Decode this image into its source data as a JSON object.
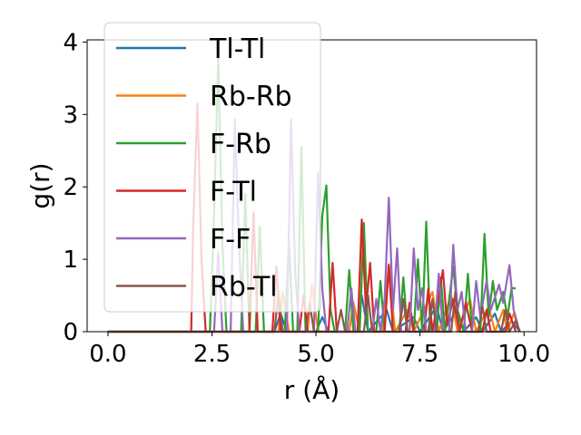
{
  "chart_data": {
    "type": "line",
    "xlabel": "r (Å)",
    "ylabel": "g(r)",
    "xlim": [
      -0.5,
      10.3
    ],
    "ylim": [
      0,
      4.03
    ],
    "xticks": [
      0.0,
      2.5,
      5.0,
      7.5,
      10.0
    ],
    "xtick_labels": [
      "0.0",
      "2.5",
      "5.0",
      "7.5",
      "10.0"
    ],
    "yticks": [
      0,
      1,
      2,
      3,
      4
    ],
    "ytick_labels": [
      "0",
      "1",
      "2",
      "3",
      "4"
    ],
    "grid": false,
    "legend_position": "upper-left",
    "series": [
      {
        "name": "Tl-Tl",
        "color": "#1f77b4",
        "points": [
          [
            0,
            0
          ],
          [
            4.0,
            0
          ],
          [
            4.15,
            0.25
          ],
          [
            4.3,
            0
          ],
          [
            5.0,
            0
          ],
          [
            5.15,
            0.2
          ],
          [
            5.3,
            0
          ],
          [
            6.0,
            0
          ],
          [
            6.1,
            0.5
          ],
          [
            6.25,
            0
          ],
          [
            6.7,
            0.3
          ],
          [
            6.85,
            0
          ],
          [
            7.35,
            0.2
          ],
          [
            7.5,
            0
          ],
          [
            7.9,
            0.35
          ],
          [
            8.05,
            0
          ],
          [
            8.4,
            0.3
          ],
          [
            8.55,
            0
          ],
          [
            8.85,
            0.2
          ],
          [
            9.0,
            0
          ],
          [
            9.3,
            0.25
          ],
          [
            9.45,
            0
          ],
          [
            9.7,
            0.15
          ],
          [
            9.9,
            0
          ]
        ]
      },
      {
        "name": "Rb-Rb",
        "color": "#ff7f0e",
        "points": [
          [
            0,
            0
          ],
          [
            4.1,
            0
          ],
          [
            4.2,
            0.55
          ],
          [
            4.35,
            0
          ],
          [
            4.8,
            0
          ],
          [
            4.9,
            0.65
          ],
          [
            5.05,
            0
          ],
          [
            5.8,
            0
          ],
          [
            5.9,
            0.4
          ],
          [
            6.05,
            0
          ],
          [
            6.6,
            0
          ],
          [
            6.75,
            0.93
          ],
          [
            6.9,
            0
          ],
          [
            7.2,
            0.3
          ],
          [
            7.35,
            0
          ],
          [
            7.8,
            0.55
          ],
          [
            7.95,
            0
          ],
          [
            8.25,
            0.5
          ],
          [
            8.4,
            0
          ],
          [
            8.7,
            0.45
          ],
          [
            8.85,
            0
          ],
          [
            9.15,
            0.35
          ],
          [
            9.3,
            0
          ],
          [
            9.5,
            0.3
          ],
          [
            9.6,
            0
          ],
          [
            9.75,
            0.25
          ],
          [
            9.9,
            0
          ]
        ]
      },
      {
        "name": "F-Rb",
        "color": "#2ca02c",
        "points": [
          [
            0,
            0
          ],
          [
            2.45,
            0
          ],
          [
            2.55,
            1.6
          ],
          [
            2.65,
            3.78
          ],
          [
            2.75,
            1.2
          ],
          [
            2.85,
            0
          ],
          [
            3.2,
            0
          ],
          [
            3.3,
            1.9
          ],
          [
            3.4,
            0
          ],
          [
            3.55,
            0
          ],
          [
            3.65,
            1.45
          ],
          [
            3.75,
            0
          ],
          [
            4.25,
            0
          ],
          [
            4.35,
            1.25
          ],
          [
            4.45,
            0
          ],
          [
            4.55,
            0
          ],
          [
            4.65,
            2.55
          ],
          [
            4.75,
            0
          ],
          [
            5.05,
            0
          ],
          [
            5.15,
            1.6
          ],
          [
            5.25,
            2.02
          ],
          [
            5.35,
            0.3
          ],
          [
            5.45,
            0
          ],
          [
            5.7,
            0
          ],
          [
            5.8,
            0.85
          ],
          [
            5.9,
            0
          ],
          [
            6.05,
            0
          ],
          [
            6.15,
            1.5
          ],
          [
            6.25,
            0
          ],
          [
            6.45,
            0
          ],
          [
            6.55,
            0.7
          ],
          [
            6.65,
            0
          ],
          [
            7.0,
            0
          ],
          [
            7.1,
            0.75
          ],
          [
            7.2,
            0
          ],
          [
            7.35,
            0
          ],
          [
            7.45,
            1.0
          ],
          [
            7.55,
            0
          ],
          [
            7.65,
            1.52
          ],
          [
            7.75,
            0
          ],
          [
            7.9,
            0
          ],
          [
            8.0,
            0.75
          ],
          [
            8.1,
            0
          ],
          [
            8.3,
            0.9
          ],
          [
            8.4,
            0.3
          ],
          [
            8.55,
            0
          ],
          [
            8.65,
            0.8
          ],
          [
            8.75,
            0
          ],
          [
            8.95,
            0
          ],
          [
            9.05,
            1.35
          ],
          [
            9.15,
            0.2
          ],
          [
            9.25,
            0.7
          ],
          [
            9.35,
            0.3
          ],
          [
            9.5,
            0.55
          ],
          [
            9.6,
            0.2
          ],
          [
            9.7,
            0.6
          ],
          [
            9.8,
            0.6
          ]
        ]
      },
      {
        "name": "F-Tl",
        "color": "#d62728",
        "points": [
          [
            0,
            0
          ],
          [
            2.0,
            0
          ],
          [
            2.05,
            1.5
          ],
          [
            2.15,
            3.15
          ],
          [
            2.25,
            1.0
          ],
          [
            2.35,
            0
          ],
          [
            3.4,
            0
          ],
          [
            3.5,
            1.65
          ],
          [
            3.6,
            0
          ],
          [
            3.95,
            0
          ],
          [
            4.05,
            0.9
          ],
          [
            4.15,
            0
          ],
          [
            4.6,
            0
          ],
          [
            4.7,
            0.5
          ],
          [
            4.8,
            0
          ],
          [
            5.3,
            0
          ],
          [
            5.4,
            0.95
          ],
          [
            5.5,
            0
          ],
          [
            6.0,
            0
          ],
          [
            6.1,
            1.55
          ],
          [
            6.2,
            0.3
          ],
          [
            6.3,
            0.95
          ],
          [
            6.4,
            0
          ],
          [
            6.65,
            0
          ],
          [
            6.75,
            0.92
          ],
          [
            6.85,
            0
          ],
          [
            7.15,
            0
          ],
          [
            7.25,
            0.4
          ],
          [
            7.35,
            0
          ],
          [
            7.6,
            0
          ],
          [
            7.7,
            0.6
          ],
          [
            7.8,
            0
          ],
          [
            8.05,
            0.85
          ],
          [
            8.15,
            0.1
          ],
          [
            8.3,
            0.45
          ],
          [
            8.45,
            0
          ],
          [
            8.6,
            0.4
          ],
          [
            8.75,
            0
          ],
          [
            9.0,
            0
          ],
          [
            9.1,
            0.3
          ],
          [
            9.2,
            0
          ],
          [
            9.55,
            0
          ],
          [
            9.65,
            0.25
          ],
          [
            9.8,
            0
          ]
        ]
      },
      {
        "name": "F-F",
        "color": "#9467bd",
        "points": [
          [
            0,
            0
          ],
          [
            2.55,
            0
          ],
          [
            2.65,
            1.1
          ],
          [
            2.75,
            0
          ],
          [
            2.95,
            0
          ],
          [
            3.05,
            2.93
          ],
          [
            3.15,
            1.2
          ],
          [
            3.25,
            0
          ],
          [
            4.3,
            0
          ],
          [
            4.4,
            2.93
          ],
          [
            4.5,
            0.8
          ],
          [
            4.6,
            0
          ],
          [
            4.95,
            0
          ],
          [
            5.05,
            2.2
          ],
          [
            5.15,
            0.6
          ],
          [
            5.25,
            0
          ],
          [
            5.75,
            0
          ],
          [
            5.85,
            0.6
          ],
          [
            5.95,
            0
          ],
          [
            6.35,
            0
          ],
          [
            6.45,
            0.45
          ],
          [
            6.55,
            0
          ],
          [
            6.65,
            0.45
          ],
          [
            6.75,
            1.85
          ],
          [
            6.85,
            0.3
          ],
          [
            6.95,
            1.15
          ],
          [
            7.05,
            0
          ],
          [
            7.25,
            0
          ],
          [
            7.35,
            1.15
          ],
          [
            7.45,
            0.3
          ],
          [
            7.55,
            0.6
          ],
          [
            7.65,
            0
          ],
          [
            7.85,
            0
          ],
          [
            7.95,
            0.8
          ],
          [
            8.05,
            0
          ],
          [
            8.2,
            0
          ],
          [
            8.3,
            1.2
          ],
          [
            8.4,
            0.3
          ],
          [
            8.5,
            0.55
          ],
          [
            8.6,
            0
          ],
          [
            8.75,
            0
          ],
          [
            8.85,
            0.7
          ],
          [
            8.95,
            0.2
          ],
          [
            9.1,
            0.7
          ],
          [
            9.2,
            0.3
          ],
          [
            9.4,
            0.65
          ],
          [
            9.5,
            0.4
          ],
          [
            9.65,
            0.92
          ],
          [
            9.75,
            0.3
          ],
          [
            9.85,
            0.1
          ]
        ]
      },
      {
        "name": "Rb-Tl",
        "color": "#8c564b",
        "points": [
          [
            0,
            0
          ],
          [
            4.0,
            0
          ],
          [
            4.1,
            0.55
          ],
          [
            4.2,
            0
          ],
          [
            4.75,
            0
          ],
          [
            4.85,
            0.4
          ],
          [
            4.95,
            0
          ],
          [
            5.5,
            0
          ],
          [
            5.6,
            0.3
          ],
          [
            5.7,
            0
          ],
          [
            6.15,
            0
          ],
          [
            6.25,
            0.5
          ],
          [
            6.35,
            0
          ],
          [
            7.0,
            0
          ],
          [
            7.1,
            0.45
          ],
          [
            7.2,
            0
          ],
          [
            7.7,
            0
          ],
          [
            7.8,
            0.45
          ],
          [
            7.9,
            0
          ],
          [
            8.25,
            0
          ],
          [
            8.35,
            0.55
          ],
          [
            8.45,
            0
          ],
          [
            8.9,
            0
          ],
          [
            9.0,
            0.35
          ],
          [
            9.1,
            0
          ],
          [
            9.45,
            0
          ],
          [
            9.55,
            0.3
          ],
          [
            9.65,
            0
          ],
          [
            9.8,
            0.15
          ],
          [
            9.9,
            0
          ]
        ]
      }
    ]
  }
}
